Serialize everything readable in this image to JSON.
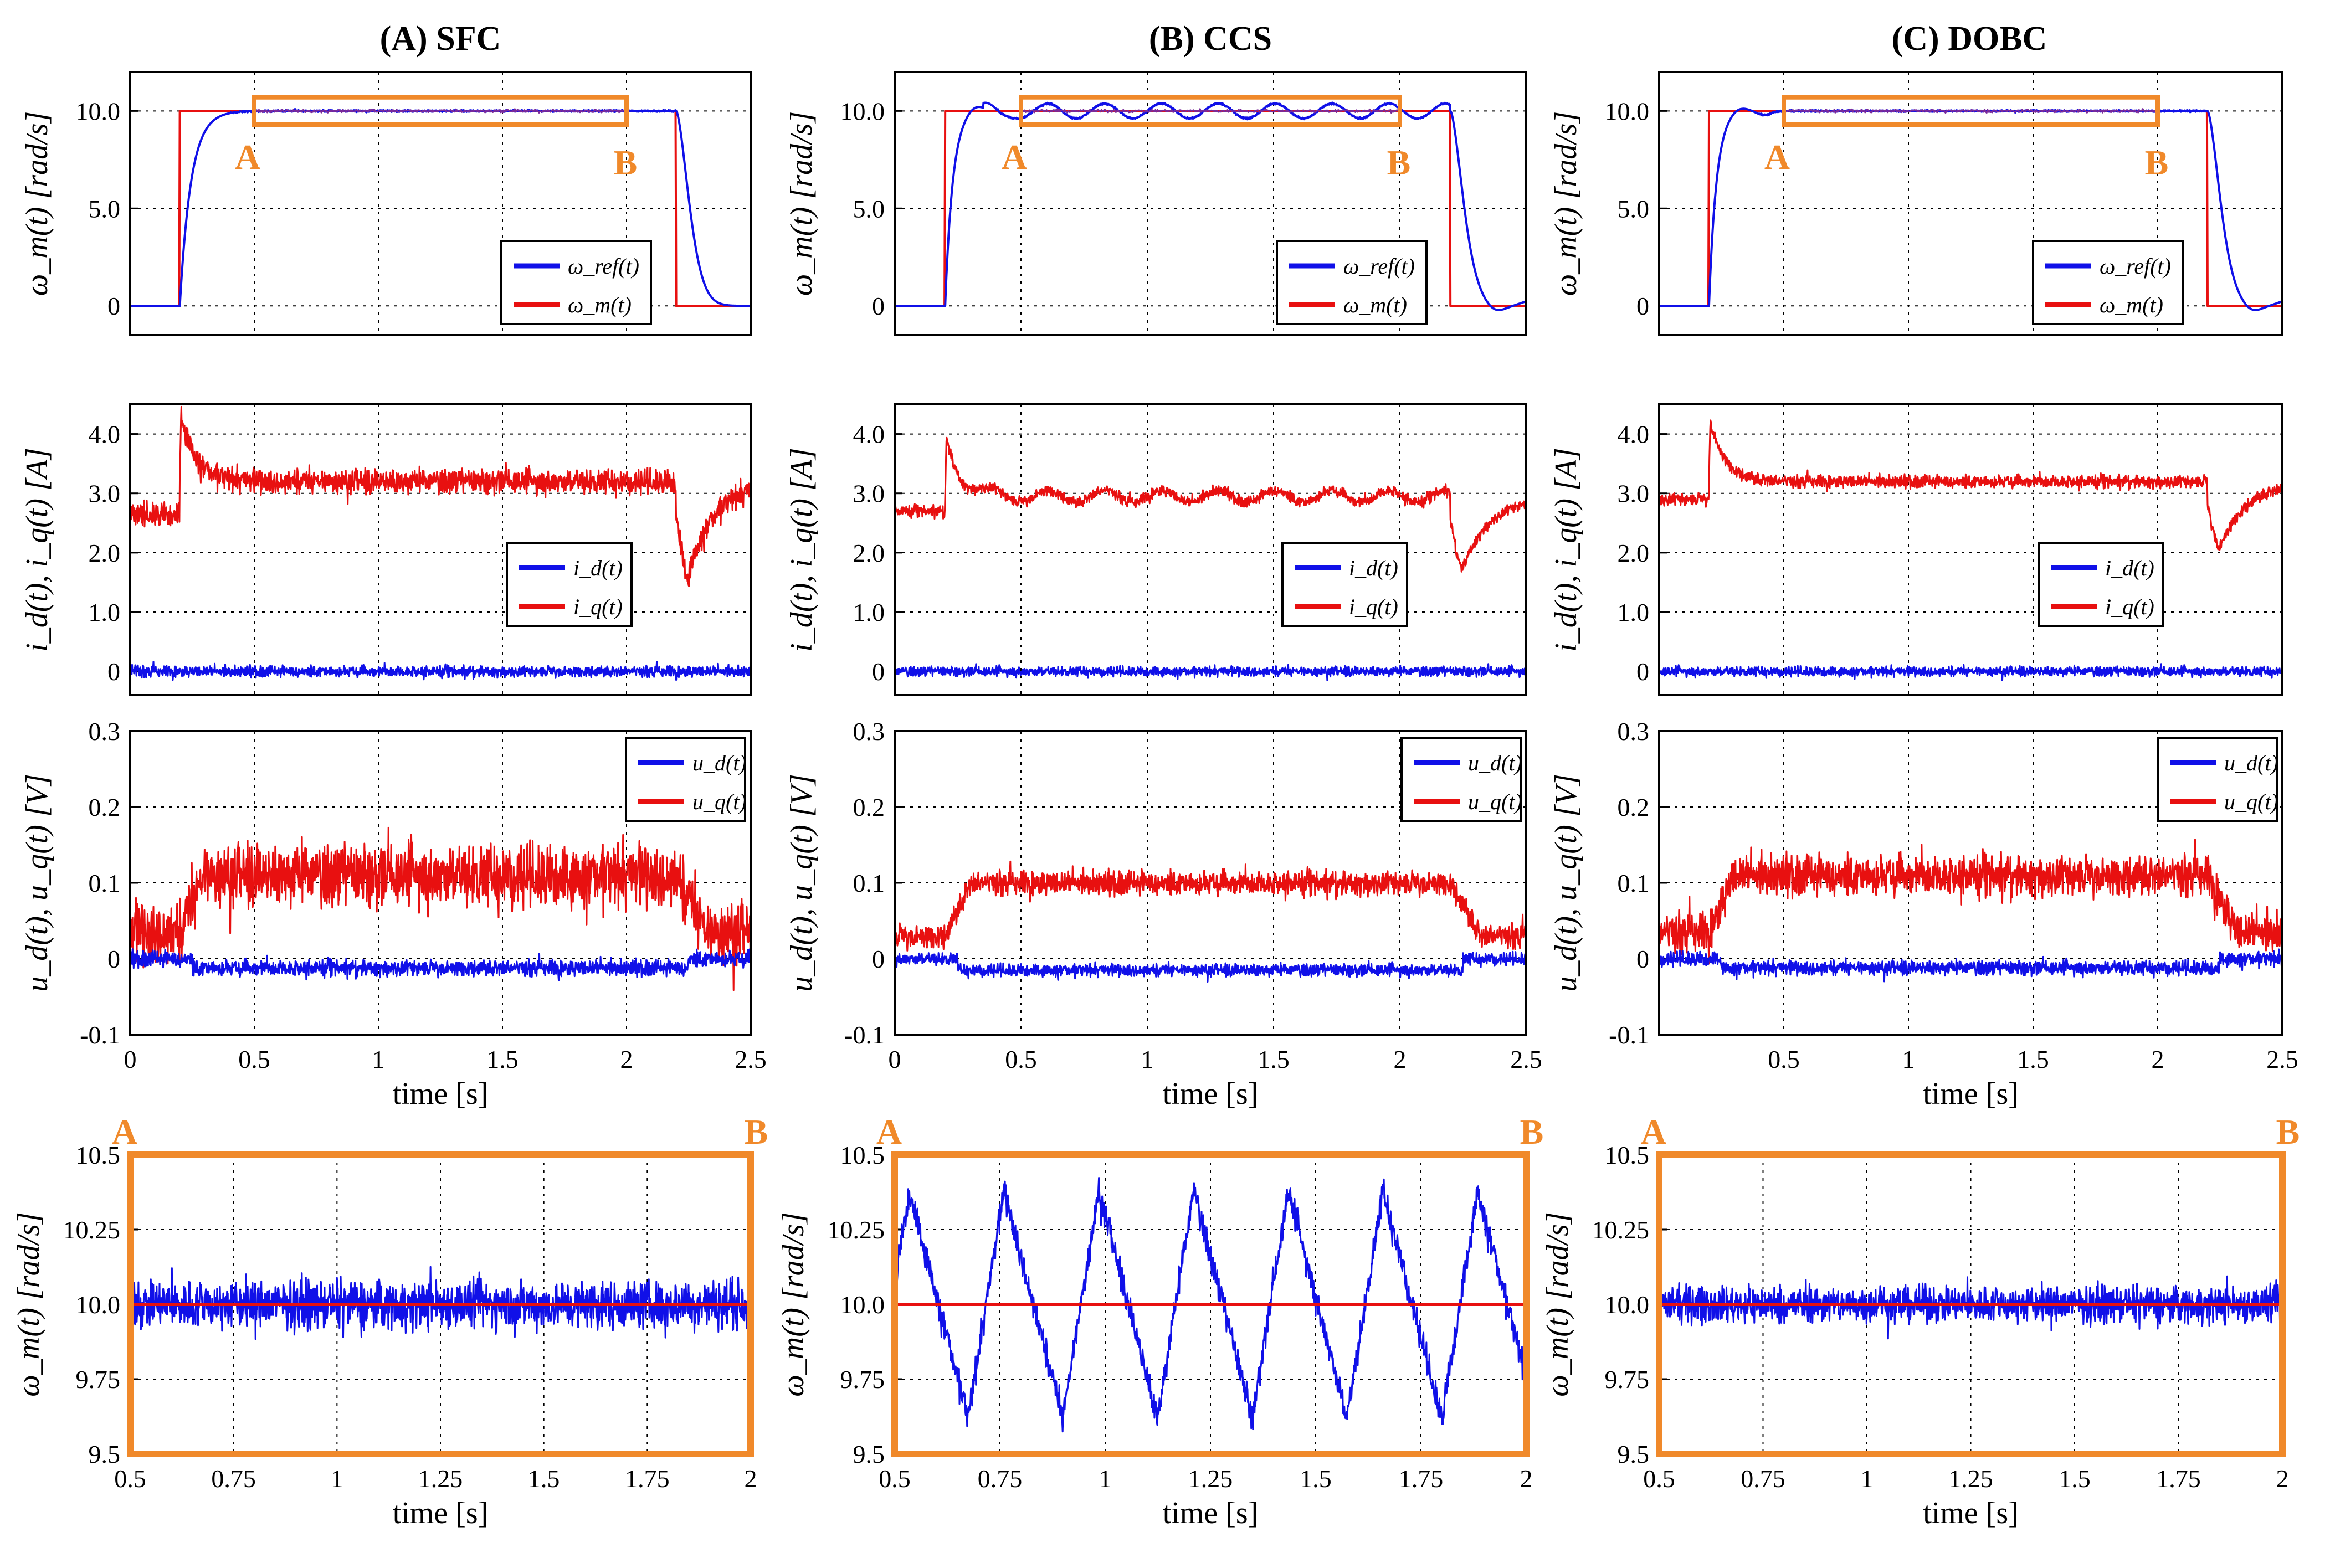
{
  "colors": {
    "blue": "#1010e8",
    "red": "#e81010",
    "orange": "#f0892a",
    "purple": "#7a2a9a"
  },
  "chart_data": [
    {
      "id": "A",
      "title": "(A) SFC",
      "speed": {
        "type": "line",
        "ylabel": "ω_m(t) [rad/s]",
        "ylim": [
          -1.5,
          12
        ],
        "yticks": [
          0,
          5.0,
          10.0
        ],
        "ytick_labels": [
          "0",
          "5.0",
          "10.0"
        ],
        "xlim": [
          0,
          2.5
        ],
        "legend": [
          "ω_ref(t)",
          "ω_m(t)"
        ],
        "step": {
          "on": 0.2,
          "off": 2.2,
          "level": 10.0
        },
        "tau": 0.045,
        "overshoot": 0,
        "ripple": 0,
        "settle_noise": 0.03,
        "zoom_box": {
          "x_from": 0.5,
          "x_to": 2.0,
          "y_from": 9.3,
          "y_to": 10.7,
          "labels": [
            "A",
            "B"
          ]
        }
      },
      "current": {
        "type": "line",
        "ylabel": "i_d(t), i_q(t) [A]",
        "ylim": [
          -0.4,
          4.5
        ],
        "yticks": [
          0,
          1.0,
          2.0,
          3.0,
          4.0
        ],
        "ytick_labels": [
          "0",
          "1.0",
          "2.0",
          "3.0",
          "4.0"
        ],
        "xlim": [
          0,
          2.5
        ],
        "legend": [
          "i_d(t)",
          "i_q(t)"
        ],
        "iq_base": 2.65,
        "iq_level": 3.2,
        "iq_peak": 4.45,
        "iq_dip": 1.6,
        "iq_noise": 0.15,
        "id_noise": 0.07
      },
      "voltage": {
        "type": "line",
        "ylabel": "u_d(t), u_q(t) [V]",
        "ylim": [
          -0.1,
          0.3
        ],
        "yticks": [
          -0.1,
          0,
          0.1,
          0.2,
          0.3
        ],
        "ytick_labels": [
          "-0.1",
          "0",
          "0.1",
          "0.2",
          "0.3"
        ],
        "xlim": [
          0,
          2.5
        ],
        "legend": [
          "u_d(t)",
          "u_q(t)"
        ],
        "uq_base": 0.035,
        "uq_level": 0.11,
        "uq_noise": 0.03,
        "ud_level": -0.012,
        "ud_noise": 0.008,
        "xticks": [
          0,
          0.5,
          1,
          1.5,
          2,
          2.5
        ],
        "xtick_labels": [
          "0",
          "0.5",
          "1",
          "1.5",
          "2",
          "2.5"
        ],
        "xlabel": "time [s]"
      },
      "zoom": {
        "type": "line",
        "ylabel": "ω_m(t) [rad/s]",
        "ylim": [
          9.5,
          10.5
        ],
        "yticks": [
          9.5,
          9.75,
          10.0,
          10.25,
          10.5
        ],
        "ytick_labels": [
          "9.5",
          "9.75",
          "10.0",
          "10.25",
          "10.5"
        ],
        "xlim": [
          0.5,
          2.0
        ],
        "xticks": [
          0.5,
          0.75,
          1,
          1.25,
          1.5,
          1.75,
          2
        ],
        "xtick_labels": [
          "0.5",
          "0.75",
          "1",
          "1.25",
          "1.5",
          "1.75",
          "2"
        ],
        "xlabel": "time [s]",
        "ref": 10.0,
        "amplitude": 0.0,
        "period": 0.23,
        "noise": 0.06,
        "corner_labels": [
          "A",
          "B"
        ]
      }
    },
    {
      "id": "B",
      "title": "(B) CCS",
      "speed": {
        "type": "line",
        "ylabel": "ω_m(t) [rad/s]",
        "ylim": [
          -1.5,
          12
        ],
        "yticks": [
          0,
          5.0,
          10.0
        ],
        "ytick_labels": [
          "0",
          "5.0",
          "10.0"
        ],
        "xlim": [
          0,
          2.5
        ],
        "legend": [
          "ω_ref(t)",
          "ω_m(t)"
        ],
        "step": {
          "on": 0.2,
          "off": 2.2,
          "level": 10.0
        },
        "tau": 0.03,
        "overshoot": 0.35,
        "ripple": 0.38,
        "settle_noise": 0.03,
        "zoom_box": {
          "x_from": 0.5,
          "x_to": 2.0,
          "y_from": 9.3,
          "y_to": 10.7,
          "labels": [
            "A",
            "B"
          ]
        }
      },
      "current": {
        "type": "line",
        "ylabel": "i_d(t), i_q(t) [A]",
        "ylim": [
          -0.4,
          4.5
        ],
        "yticks": [
          0,
          1.0,
          2.0,
          3.0,
          4.0
        ],
        "ytick_labels": [
          "0",
          "1.0",
          "2.0",
          "3.0",
          "4.0"
        ],
        "xlim": [
          0,
          2.5
        ],
        "legend": [
          "i_d(t)",
          "i_q(t)"
        ],
        "iq_base": 2.7,
        "iq_level": 2.95,
        "iq_peak": 4.0,
        "iq_dip": 1.75,
        "iq_noise": 0.07,
        "id_noise": 0.06
      },
      "voltage": {
        "type": "line",
        "ylabel": "u_d(t), u_q(t) [V]",
        "ylim": [
          -0.1,
          0.3
        ],
        "yticks": [
          -0.1,
          0,
          0.1,
          0.2,
          0.3
        ],
        "ytick_labels": [
          "-0.1",
          "0",
          "0.1",
          "0.2",
          "0.3"
        ],
        "xlim": [
          0,
          2.5
        ],
        "legend": [
          "u_d(t)",
          "u_q(t)"
        ],
        "uq_base": 0.03,
        "uq_level": 0.1,
        "uq_noise": 0.012,
        "ud_level": -0.015,
        "ud_noise": 0.006,
        "xticks": [
          0,
          0.5,
          1,
          1.5,
          2,
          2.5
        ],
        "xtick_labels": [
          "0",
          "0.5",
          "1",
          "1.5",
          "2",
          "2.5"
        ],
        "xlabel": "time [s]"
      },
      "zoom": {
        "type": "line",
        "ylabel": "ω_m(t) [rad/s]",
        "ylim": [
          9.5,
          10.5
        ],
        "yticks": [
          9.5,
          9.75,
          10.0,
          10.25,
          10.5
        ],
        "ytick_labels": [
          "9.5",
          "9.75",
          "10.0",
          "10.25",
          "10.5"
        ],
        "xlim": [
          0.5,
          2.0
        ],
        "xticks": [
          0.5,
          0.75,
          1,
          1.25,
          1.5,
          1.75,
          2
        ],
        "xtick_labels": [
          "0.5",
          "0.75",
          "1",
          "1.25",
          "1.5",
          "1.75",
          "2"
        ],
        "xlabel": "time [s]",
        "ref": 10.0,
        "amplitude": 0.38,
        "period": 0.225,
        "noise": 0.035,
        "corner_labels": [
          "A",
          "B"
        ]
      }
    },
    {
      "id": "C",
      "title": "(C) DOBC",
      "speed": {
        "type": "line",
        "ylabel": "ω_m(t) [rad/s]",
        "ylim": [
          -1.5,
          12
        ],
        "yticks": [
          0,
          5.0,
          10.0
        ],
        "ytick_labels": [
          "0",
          "5.0",
          "10.0"
        ],
        "xlim": [
          0,
          2.5
        ],
        "legend": [
          "ω_ref(t)",
          "ω_m(t)"
        ],
        "step": {
          "on": 0.2,
          "off": 2.2,
          "level": 10.0
        },
        "tau": 0.03,
        "overshoot": 0.25,
        "ripple": 0,
        "settle_noise": 0.03,
        "zoom_box": {
          "x_from": 0.5,
          "x_to": 2.0,
          "y_from": 9.3,
          "y_to": 10.7,
          "labels": [
            "A",
            "B"
          ]
        }
      },
      "current": {
        "type": "line",
        "ylabel": "i_d(t), i_q(t) [A]",
        "ylim": [
          -0.4,
          4.5
        ],
        "yticks": [
          0,
          1.0,
          2.0,
          3.0,
          4.0
        ],
        "ytick_labels": [
          "0",
          "1.0",
          "2.0",
          "3.0",
          "4.0"
        ],
        "xlim": [
          0,
          2.5
        ],
        "legend": [
          "i_d(t)",
          "i_q(t)"
        ],
        "iq_base": 2.9,
        "iq_level": 3.2,
        "iq_peak": 4.3,
        "iq_dip": 2.1,
        "iq_noise": 0.08,
        "id_noise": 0.06
      },
      "voltage": {
        "type": "line",
        "ylabel": "u_d(t), u_q(t) [V]",
        "ylim": [
          -0.1,
          0.3
        ],
        "yticks": [
          -0.1,
          0,
          0.1,
          0.2,
          0.3
        ],
        "ytick_labels": [
          "-0.1",
          "0",
          "0.1",
          "0.2",
          "0.3"
        ],
        "xlim": [
          0,
          2.5
        ],
        "legend": [
          "u_d(t)",
          "u_q(t)"
        ],
        "uq_base": 0.035,
        "uq_level": 0.11,
        "uq_noise": 0.02,
        "ud_level": -0.012,
        "ud_noise": 0.007,
        "xticks": [
          0.5,
          1,
          1.5,
          2,
          2.5
        ],
        "xtick_labels": [
          "0.5",
          "1",
          "1.5",
          "2",
          "2.5"
        ],
        "xlabel": "time [s]"
      },
      "zoom": {
        "type": "line",
        "ylabel": "ω_m(t) [rad/s]",
        "ylim": [
          9.5,
          10.5
        ],
        "yticks": [
          9.5,
          9.75,
          10.0,
          10.25,
          10.5
        ],
        "ytick_labels": [
          "9.5",
          "9.75",
          "10.0",
          "10.25",
          "10.5"
        ],
        "xlim": [
          0.5,
          2.0
        ],
        "xticks": [
          0.5,
          0.75,
          1,
          1.25,
          1.5,
          1.75,
          2
        ],
        "xtick_labels": [
          "0.5",
          "0.75",
          "1",
          "1.25",
          "1.5",
          "1.75",
          "2"
        ],
        "xlabel": "time [s]",
        "ref": 10.0,
        "amplitude": 0.0,
        "period": 0.23,
        "noise": 0.045,
        "corner_labels": [
          "A",
          "B"
        ]
      }
    }
  ]
}
